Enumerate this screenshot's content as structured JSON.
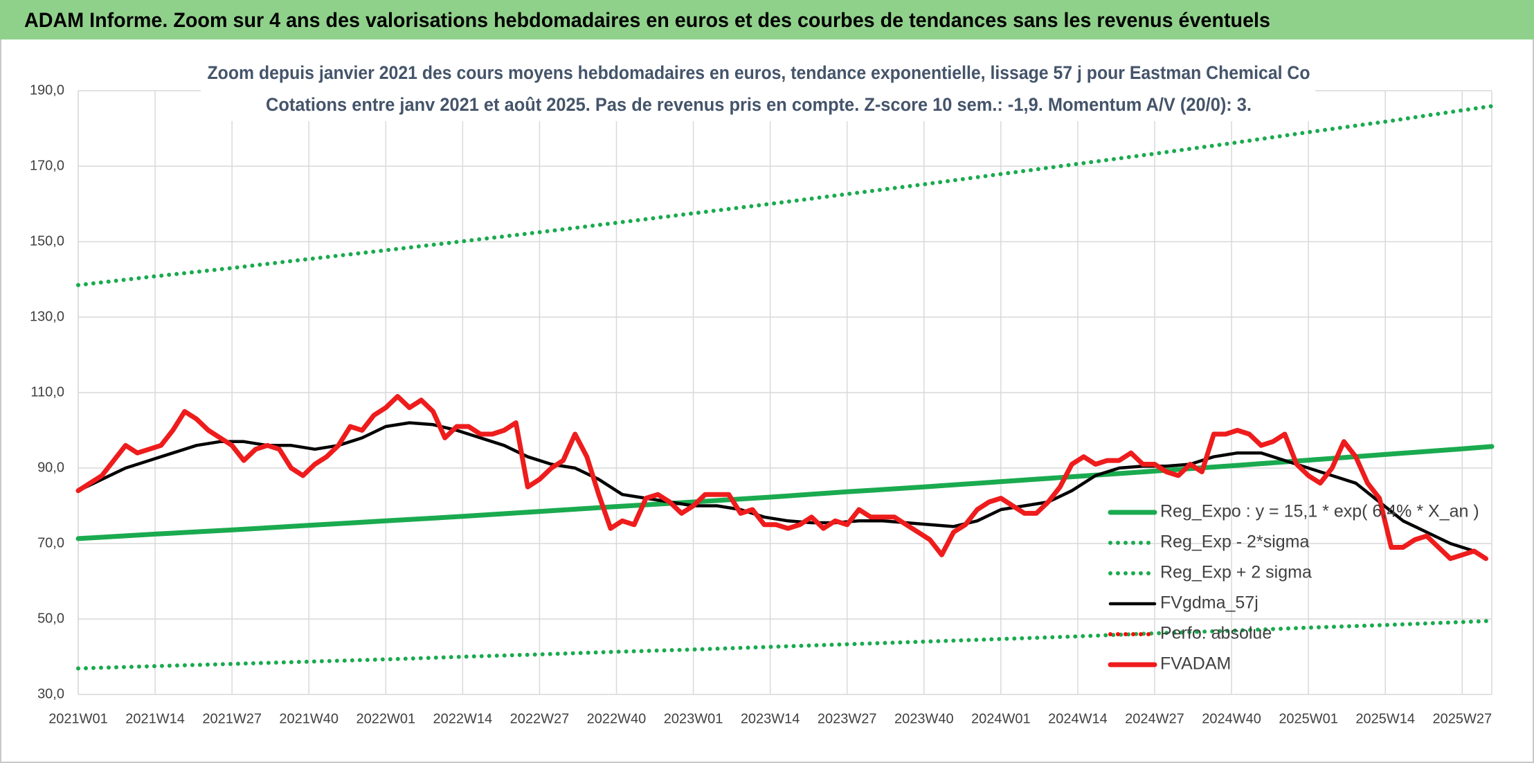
{
  "chart_data": {
    "type": "line",
    "title": "ADAM Informe. Zoom sur 4 ans des valorisations hebdomadaires en euros et des courbes de tendances sans les revenus éventuels",
    "subtitle": [
      "Zoom depuis janvier 2021 des cours moyens hebdomadaires en euros, tendance exponentielle, lissage 57 j pour Eastman Chemical Co",
      "Cotations entre janv 2021 et août 2025. Pas de revenus pris en compte. Z-score 10 sem.: -1,9. Momentum A/V (20/0): 3."
    ],
    "xlim": [
      "2021W01",
      "2025W32"
    ],
    "xticks": [
      "2021W01",
      "2021W14",
      "2021W27",
      "2021W40",
      "2022W01",
      "2022W14",
      "2022W27",
      "2022W40",
      "2023W01",
      "2023W14",
      "2023W27",
      "2023W40",
      "2024W01",
      "2024W14",
      "2024W27",
      "2024W40",
      "2025W01",
      "2025W14",
      "2025W27"
    ],
    "ylim": [
      30,
      190
    ],
    "yticks": [
      {
        "value": 30,
        "label": "30,0"
      },
      {
        "value": 50,
        "label": "50,0"
      },
      {
        "value": 70,
        "label": "70,0"
      },
      {
        "value": 90,
        "label": "90,0"
      },
      {
        "value": 110,
        "label": "110,0"
      },
      {
        "value": 130,
        "label": "130,0"
      },
      {
        "value": 150,
        "label": "150,0"
      },
      {
        "value": 170,
        "label": "170,0"
      },
      {
        "value": 190,
        "label": "190,0"
      }
    ],
    "grid": true,
    "legend": "right",
    "series": [
      {
        "name": "Reg_Expo : y = 15,1 * exp( 6,4% * X_an )",
        "color": "#1aaa4f",
        "style": "solid",
        "x": [
          "2021W01",
          "2021W14",
          "2021W27",
          "2021W40",
          "2022W01",
          "2022W14",
          "2022W27",
          "2022W40",
          "2023W01",
          "2023W14",
          "2023W27",
          "2023W40",
          "2024W01",
          "2024W14",
          "2024W27",
          "2024W40",
          "2025W01",
          "2025W14",
          "2025W27",
          "2025W32"
        ],
        "values": [
          71.3,
          72.5,
          73.6,
          74.8,
          76.0,
          77.2,
          78.5,
          79.8,
          81.0,
          82.3,
          83.7,
          85.0,
          86.4,
          87.8,
          89.2,
          90.6,
          92.1,
          93.6,
          95.1,
          95.7
        ]
      },
      {
        "name": "Reg_Exp - 2*sigma",
        "color": "#1aaa4f",
        "style": "dotted",
        "x": [
          "2021W01",
          "2021W14",
          "2021W27",
          "2021W40",
          "2022W01",
          "2022W14",
          "2022W27",
          "2022W40",
          "2023W01",
          "2023W14",
          "2023W27",
          "2023W40",
          "2024W01",
          "2024W14",
          "2024W27",
          "2024W40",
          "2025W01",
          "2025W14",
          "2025W27",
          "2025W32"
        ],
        "values": [
          36.9,
          37.5,
          38.1,
          38.7,
          39.3,
          40.0,
          40.6,
          41.3,
          41.9,
          42.6,
          43.3,
          44.0,
          44.7,
          45.4,
          46.2,
          46.9,
          47.7,
          48.4,
          49.2,
          49.5
        ]
      },
      {
        "name": "Reg_Exp + 2 sigma",
        "color": "#1aaa4f",
        "style": "dotted",
        "x": [
          "2021W01",
          "2021W14",
          "2021W27",
          "2021W40",
          "2022W01",
          "2022W14",
          "2022W27",
          "2022W40",
          "2023W01",
          "2023W14",
          "2023W27",
          "2023W40",
          "2024W01",
          "2024W14",
          "2024W27",
          "2024W40",
          "2025W01",
          "2025W14",
          "2025W27",
          "2025W32"
        ],
        "values": [
          138.5,
          140.8,
          143.0,
          145.4,
          147.7,
          150.1,
          152.5,
          155.0,
          157.5,
          160.0,
          162.6,
          165.2,
          167.9,
          170.6,
          173.3,
          176.1,
          179.0,
          181.8,
          184.8,
          185.9
        ]
      },
      {
        "name": "FVgdma_57j",
        "color": "#000000",
        "style": "solid",
        "x": [
          "2021W01",
          "2021W05",
          "2021W09",
          "2021W13",
          "2021W17",
          "2021W21",
          "2021W25",
          "2021W29",
          "2021W33",
          "2021W37",
          "2021W41",
          "2021W45",
          "2021W49",
          "2022W01",
          "2022W05",
          "2022W09",
          "2022W13",
          "2022W17",
          "2022W21",
          "2022W25",
          "2022W29",
          "2022W33",
          "2022W37",
          "2022W41",
          "2022W45",
          "2022W49",
          "2023W01",
          "2023W05",
          "2023W09",
          "2023W13",
          "2023W17",
          "2023W21",
          "2023W25",
          "2023W29",
          "2023W33",
          "2023W37",
          "2023W41",
          "2023W45",
          "2023W49",
          "2024W01",
          "2024W05",
          "2024W09",
          "2024W13",
          "2024W17",
          "2024W21",
          "2024W25",
          "2024W29",
          "2024W33",
          "2024W37",
          "2024W41",
          "2024W45",
          "2024W49",
          "2025W01",
          "2025W05",
          "2025W09",
          "2025W13",
          "2025W17",
          "2025W21",
          "2025W25",
          "2025W29"
        ],
        "values": [
          84,
          87,
          90,
          92,
          94,
          96,
          97,
          97,
          96,
          96,
          95,
          96,
          98,
          101,
          102,
          101.5,
          100,
          98,
          96,
          93,
          91,
          90,
          87,
          83,
          82,
          81,
          80,
          80,
          79,
          77,
          76,
          75.5,
          75.5,
          76,
          76,
          75.5,
          75,
          74.5,
          76,
          79,
          80,
          81,
          84,
          88,
          90,
          90.5,
          90.5,
          91,
          93,
          94,
          94,
          92,
          90,
          88,
          86,
          81,
          76,
          73,
          70,
          68
        ]
      },
      {
        "name": "Perfo. absolue",
        "color": "#ff0000",
        "style": "dotted",
        "x": [],
        "values": []
      },
      {
        "name": "FVADAM",
        "color": "#ee1c1c",
        "style": "solid",
        "x": [
          "2021W01",
          "2021W03",
          "2021W05",
          "2021W07",
          "2021W09",
          "2021W11",
          "2021W13",
          "2021W15",
          "2021W17",
          "2021W19",
          "2021W21",
          "2021W23",
          "2021W25",
          "2021W27",
          "2021W29",
          "2021W31",
          "2021W33",
          "2021W35",
          "2021W37",
          "2021W39",
          "2021W41",
          "2021W43",
          "2021W45",
          "2021W47",
          "2021W49",
          "2021W51",
          "2022W01",
          "2022W03",
          "2022W05",
          "2022W07",
          "2022W09",
          "2022W11",
          "2022W13",
          "2022W15",
          "2022W17",
          "2022W19",
          "2022W21",
          "2022W23",
          "2022W25",
          "2022W27",
          "2022W29",
          "2022W31",
          "2022W33",
          "2022W35",
          "2022W37",
          "2022W39",
          "2022W41",
          "2022W43",
          "2022W45",
          "2022W47",
          "2022W49",
          "2022W51",
          "2023W01",
          "2023W03",
          "2023W05",
          "2023W07",
          "2023W09",
          "2023W11",
          "2023W13",
          "2023W15",
          "2023W17",
          "2023W19",
          "2023W21",
          "2023W23",
          "2023W25",
          "2023W27",
          "2023W29",
          "2023W31",
          "2023W33",
          "2023W35",
          "2023W37",
          "2023W39",
          "2023W41",
          "2023W43",
          "2023W45",
          "2023W47",
          "2023W49",
          "2023W51",
          "2024W01",
          "2024W03",
          "2024W05",
          "2024W07",
          "2024W09",
          "2024W11",
          "2024W13",
          "2024W15",
          "2024W17",
          "2024W19",
          "2024W21",
          "2024W23",
          "2024W25",
          "2024W27",
          "2024W29",
          "2024W31",
          "2024W33",
          "2024W35",
          "2024W37",
          "2024W39",
          "2024W41",
          "2024W43",
          "2024W45",
          "2024W47",
          "2024W49",
          "2024W51",
          "2025W01",
          "2025W03",
          "2025W05",
          "2025W07",
          "2025W09",
          "2025W11",
          "2025W13",
          "2025W15",
          "2025W17",
          "2025W19",
          "2025W21",
          "2025W23",
          "2025W25",
          "2025W27",
          "2025W29",
          "2025W31"
        ],
        "values": [
          84,
          86,
          88,
          92,
          96,
          94,
          95,
          96,
          100,
          105,
          103,
          100,
          98,
          96,
          92,
          95,
          96,
          95,
          90,
          88,
          91,
          93,
          96,
          101,
          100,
          104,
          106,
          109,
          106,
          108,
          105,
          98,
          101,
          101,
          99,
          99,
          100,
          102,
          85,
          87,
          90,
          92,
          99,
          93,
          83,
          74,
          76,
          75,
          82,
          83,
          81,
          78,
          80,
          83,
          83,
          83,
          78,
          79,
          75,
          75,
          74,
          75,
          77,
          74,
          76,
          75,
          79,
          77,
          77,
          77,
          75,
          73,
          71,
          67,
          73,
          75,
          79,
          81,
          82,
          80,
          78,
          78,
          81,
          85,
          91,
          93,
          91,
          92,
          92,
          94,
          91,
          91,
          89,
          88,
          91,
          89,
          99,
          99,
          100,
          99,
          96,
          97,
          99,
          91,
          88,
          86,
          90,
          97,
          93,
          86,
          82,
          69,
          69,
          71,
          72,
          69,
          66,
          67,
          68,
          66
        ]
      }
    ]
  }
}
